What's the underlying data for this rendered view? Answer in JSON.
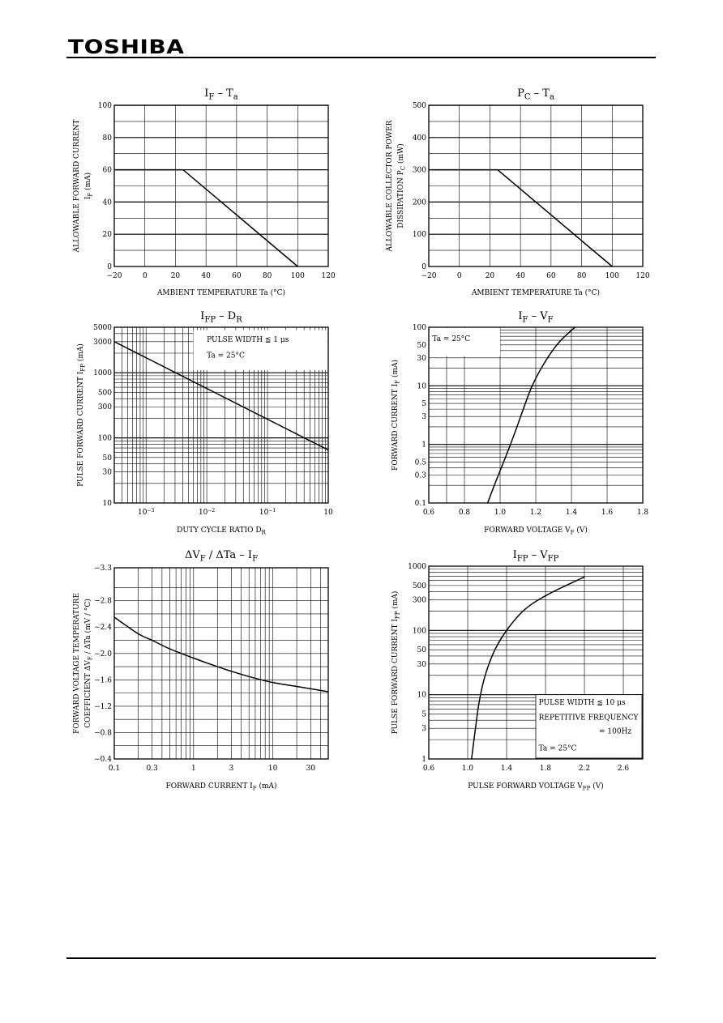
{
  "header": {
    "brand": "TOSHIBA"
  },
  "chart_data": [
    {
      "id": "if-ta",
      "type": "line",
      "title": "I<sub>F</sub> – T<sub>a</sub>",
      "xlabel": "AMBIENT TEMPERATURE    Ta    (°C)",
      "ylabel": [
        "ALLOWABLE FORWARD CURRENT",
        "I<sub>F</sub>   (mA)"
      ],
      "xscale": "linear",
      "yscale": "linear",
      "xlim": [
        -20,
        120
      ],
      "ylim": [
        0,
        100
      ],
      "xticks": [
        -20,
        0,
        20,
        40,
        60,
        80,
        100,
        120
      ],
      "xtick_labels": [
        "−20",
        "0",
        "20",
        "40",
        "60",
        "80",
        "100",
        "120"
      ],
      "yticks": [
        0,
        20,
        40,
        60,
        80,
        100
      ],
      "ytick_labels": [
        "0",
        "20",
        "40",
        "60",
        "80",
        "100"
      ],
      "vgrid": [
        -20,
        0,
        20,
        40,
        60,
        80,
        100,
        120
      ],
      "hgrid": [
        0,
        10,
        20,
        30,
        40,
        50,
        60,
        70,
        80,
        90,
        100
      ],
      "hgrid_heavy": [
        20,
        40,
        60,
        80,
        100
      ],
      "series": [
        {
          "x": [
            -20,
            25,
            100
          ],
          "y": [
            60,
            60,
            0
          ]
        }
      ],
      "annotations": []
    },
    {
      "id": "pc-ta",
      "type": "line",
      "title": "P<sub>C</sub> – T<sub>a</sub>",
      "xlabel": "AMBIENT TEMPERATURE    Ta    (°C)",
      "ylabel": [
        "ALLOWABLE COLLECTOR POWER",
        "DISSIPATION   P<sub>C</sub>   (mW)"
      ],
      "xscale": "linear",
      "yscale": "linear",
      "xlim": [
        -20,
        120
      ],
      "ylim": [
        0,
        500
      ],
      "xticks": [
        -20,
        0,
        20,
        40,
        60,
        80,
        100,
        120
      ],
      "xtick_labels": [
        "−20",
        "0",
        "20",
        "40",
        "60",
        "80",
        "100",
        "120"
      ],
      "yticks": [
        0,
        100,
        200,
        300,
        400,
        500
      ],
      "ytick_labels": [
        "0",
        "100",
        "200",
        "300",
        "400",
        "500"
      ],
      "vgrid": [
        -20,
        0,
        20,
        40,
        60,
        80,
        100,
        120
      ],
      "hgrid": [
        0,
        50,
        100,
        150,
        200,
        250,
        300,
        350,
        400,
        450,
        500
      ],
      "hgrid_heavy": [
        100,
        200,
        300,
        400,
        500
      ],
      "series": [
        {
          "x": [
            -20,
            25,
            100
          ],
          "y": [
            300,
            300,
            0
          ]
        }
      ],
      "annotations": []
    },
    {
      "id": "ifp-dr",
      "type": "line",
      "title": "I<sub>FP</sub> – D<sub>R</sub>",
      "xlabel": "DUTY CYCLE RATIO    D<sub>R</sub>",
      "ylabel": [
        "PULSE FORWARD CURRENT   I<sub>FP</sub>   (mA)"
      ],
      "xscale": "log",
      "yscale": "log",
      "xlim": [
        0.0003,
        1
      ],
      "ylim": [
        10,
        5000
      ],
      "xticks": [
        0.001,
        0.01,
        0.1,
        1
      ],
      "xtick_labels": [
        "10<sup>−3</sup>",
        "10<sup>−2</sup>",
        "10<sup>−1</sup>",
        "10"
      ],
      "yticks": [
        10,
        30,
        50,
        100,
        300,
        500,
        1000,
        3000,
        5000
      ],
      "ytick_labels": [
        "10",
        "30",
        "50",
        "100",
        "300",
        "500",
        "1000",
        "3000",
        "5000"
      ],
      "vgrid": [
        0.0003,
        0.0004,
        0.0005,
        0.0006,
        0.0007,
        0.0008,
        0.0009,
        0.001,
        0.002,
        0.003,
        0.004,
        0.005,
        0.006,
        0.007,
        0.008,
        0.009,
        0.01,
        0.02,
        0.03,
        0.04,
        0.05,
        0.06,
        0.07,
        0.08,
        0.09,
        0.1,
        0.2,
        0.3,
        0.4,
        0.5,
        0.6,
        0.7,
        0.8,
        0.9,
        1
      ],
      "hgrid": [
        10,
        20,
        30,
        40,
        50,
        60,
        70,
        80,
        90,
        100,
        200,
        300,
        400,
        500,
        600,
        700,
        800,
        900,
        1000,
        2000,
        3000,
        4000,
        5000
      ],
      "hgrid_heavy": [
        100,
        1000
      ],
      "series": [
        {
          "x": [
            0.0003,
            1
          ],
          "y": [
            3000,
            65
          ]
        }
      ],
      "annotations": [
        {
          "text": "PULSE WIDTH ≦ 1 μs",
          "x": 0.01,
          "y": 3000
        },
        {
          "text": "Ta = 25°C",
          "x": 0.01,
          "y": 1700
        }
      ]
    },
    {
      "id": "if-vf",
      "type": "line",
      "title": "I<sub>F</sub> – V<sub>F</sub>",
      "xlabel": "FORWARD VOLTAGE    V<sub>F</sub>    (V)",
      "ylabel": [
        "FORWARD CURRENT    I<sub>F</sub>    (mA)"
      ],
      "xscale": "linear",
      "yscale": "log",
      "xlim": [
        0.6,
        1.8
      ],
      "ylim": [
        0.1,
        100
      ],
      "xticks": [
        0.6,
        0.8,
        1.0,
        1.2,
        1.4,
        1.6,
        1.8
      ],
      "xtick_labels": [
        "0.6",
        "0.8",
        "1.0",
        "1.2",
        "1.4",
        "1.6",
        "1.8"
      ],
      "yticks": [
        0.1,
        0.3,
        0.5,
        1,
        3,
        5,
        10,
        30,
        50,
        100
      ],
      "ytick_labels": [
        "0.1",
        "0.3",
        "0.5",
        "1",
        "3",
        "5",
        "10",
        "30",
        "50",
        "100"
      ],
      "vgrid": [
        0.6,
        0.7,
        0.8,
        1.0,
        1.2,
        1.4,
        1.6,
        1.8
      ],
      "hgrid": [
        0.1,
        0.2,
        0.3,
        0.4,
        0.5,
        0.6,
        0.7,
        0.8,
        0.9,
        1,
        2,
        3,
        4,
        5,
        6,
        7,
        8,
        9,
        10,
        20,
        30,
        40,
        50,
        60,
        70,
        80,
        90,
        100
      ],
      "hgrid_heavy": [
        1,
        10
      ],
      "series": [
        {
          "x": [
            0.93,
            0.98,
            1.03,
            1.08,
            1.13,
            1.18,
            1.25,
            1.33,
            1.42
          ],
          "y": [
            0.1,
            0.25,
            0.6,
            1.5,
            4,
            10,
            25,
            55,
            100
          ]
        }
      ],
      "annotations": [
        {
          "text": "Ta = 25°C",
          "x": 0.62,
          "y": 58
        }
      ]
    },
    {
      "id": "dvf-if",
      "type": "line",
      "title": "ΔV<sub>F</sub> / ΔTa – I<sub>F</sub>",
      "xlabel": "FORWARD CURRENT    I<sub>F</sub>    (mA)",
      "ylabel": [
        "FORWARD VOLTAGE TEMPERATURE",
        "COEFFICIENT   ΔV<sub>F</sub> / ΔTa   (mV / °C)"
      ],
      "xscale": "log",
      "yscale": "linear",
      "xlim": [
        0.1,
        50
      ],
      "ylim": [
        -0.4,
        -3.3
      ],
      "xticks": [
        0.1,
        0.3,
        1,
        3,
        10,
        30
      ],
      "xtick_labels": [
        "0.1",
        "0.3",
        "1",
        "3",
        "10",
        "30"
      ],
      "yticks": [
        -0.4,
        -0.8,
        -1.2,
        -1.6,
        -2.0,
        -2.4,
        -2.8,
        -3.3
      ],
      "ytick_labels": [
        "−0.4",
        "−0.8",
        "−1.2",
        "−1.6",
        "−2.0",
        "−2.4",
        "−2.8",
        "−3.3"
      ],
      "vgrid": [
        0.1,
        0.2,
        0.3,
        0.4,
        0.5,
        0.6,
        0.7,
        0.8,
        0.9,
        1,
        2,
        3,
        4,
        5,
        6,
        7,
        8,
        9,
        10,
        20,
        30,
        40,
        50
      ],
      "hgrid": [
        -0.4,
        -0.6,
        -0.8,
        -1.0,
        -1.2,
        -1.4,
        -1.6,
        -1.8,
        -2.0,
        -2.2,
        -2.4,
        -2.6,
        -2.8,
        -3.0,
        -3.3
      ],
      "hgrid_heavy": [],
      "series": [
        {
          "x": [
            0.1,
            0.2,
            0.3,
            0.5,
            1,
            2,
            3,
            5,
            10,
            20,
            50
          ],
          "y": [
            -2.55,
            -2.3,
            -2.2,
            -2.07,
            -1.93,
            -1.8,
            -1.73,
            -1.65,
            -1.56,
            -1.5,
            -1.42
          ]
        }
      ],
      "annotations": []
    },
    {
      "id": "ifp-vfp",
      "type": "line",
      "title": "I<sub>FP</sub> – V<sub>FP</sub>",
      "xlabel": "PULSE FORWARD VOLTAGE    V<sub>FP</sub>    (V)",
      "ylabel": [
        "PULSE FORWARD CURRENT    I<sub>FP</sub>    (mA)"
      ],
      "xscale": "linear",
      "yscale": "log",
      "xlim": [
        0.6,
        2.8
      ],
      "ylim": [
        1,
        1000
      ],
      "xticks": [
        0.6,
        1.0,
        1.4,
        1.8,
        2.2,
        2.6
      ],
      "xtick_labels": [
        "0.6",
        "1.0",
        "1.4",
        "1.8",
        "2.2",
        "2.6"
      ],
      "yticks": [
        1,
        3,
        5,
        10,
        30,
        50,
        100,
        300,
        500,
        1000
      ],
      "ytick_labels": [
        "1",
        "3",
        "5",
        "10",
        "30",
        "50",
        "100",
        "300",
        "500",
        "1000"
      ],
      "vgrid": [
        0.6,
        1.0,
        1.4,
        1.8,
        2.2,
        2.6,
        2.8
      ],
      "hgrid": [
        1,
        2,
        3,
        4,
        5,
        6,
        7,
        8,
        9,
        10,
        20,
        30,
        40,
        50,
        60,
        70,
        80,
        90,
        100,
        200,
        300,
        400,
        500,
        600,
        700,
        800,
        900,
        1000
      ],
      "hgrid_heavy": [
        10,
        100
      ],
      "series": [
        {
          "x": [
            1.04,
            1.08,
            1.12,
            1.18,
            1.28,
            1.42,
            1.6,
            1.85,
            2.2
          ],
          "y": [
            1,
            3,
            8,
            20,
            50,
            110,
            220,
            380,
            680
          ]
        }
      ],
      "annotations": [
        {
          "text": "PULSE WIDTH ≦ 10 μs",
          "x": 1.73,
          "y": 7
        },
        {
          "text": "REPETITIVE FREQUENCY",
          "x": 1.73,
          "y": 4.1
        },
        {
          "text": "= 100Hz",
          "x": 2.35,
          "y": 2.5
        },
        {
          "text": "Ta = 25°C",
          "x": 1.73,
          "y": 1.35
        }
      ]
    }
  ]
}
